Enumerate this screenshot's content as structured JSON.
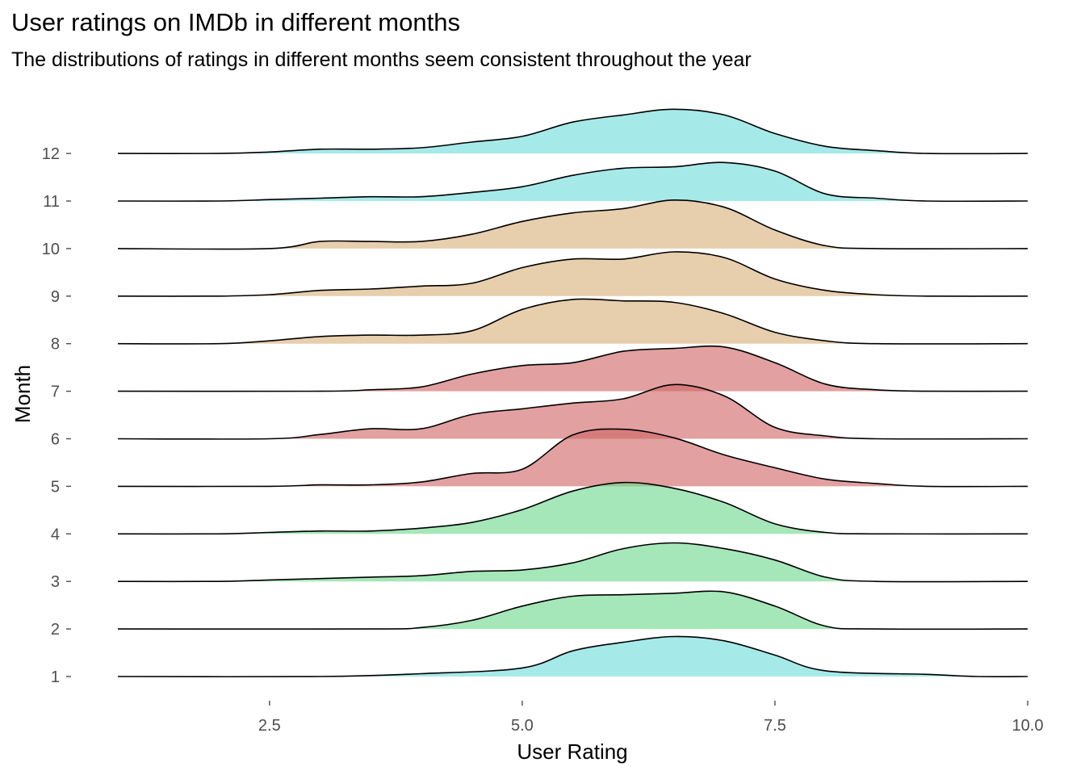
{
  "chart_data": {
    "type": "ridgeline",
    "title": "User ratings on IMDb in different months",
    "subtitle": "The distributions of ratings in different months seem consistent throughout the year",
    "xlabel": "User Rating",
    "ylabel": "Month",
    "xlim": [
      1.0,
      10.0
    ],
    "x_ticks": [
      "2.5",
      "5.0",
      "7.5",
      "10.0"
    ],
    "grid": false,
    "legend": "none",
    "scale": 1.2,
    "series": [
      {
        "name": "1",
        "fill": "#6fdbdb",
        "density": [
          [
            1.0,
            0
          ],
          [
            3,
            0.0
          ],
          [
            4,
            0.02
          ],
          [
            5,
            0.06
          ],
          [
            5.5,
            0.18
          ],
          [
            6,
            0.24
          ],
          [
            6.5,
            0.28
          ],
          [
            7,
            0.25
          ],
          [
            7.5,
            0.15
          ],
          [
            8,
            0.04
          ],
          [
            9,
            0.015
          ],
          [
            9.5,
            0.0
          ],
          [
            10,
            0
          ]
        ]
      },
      {
        "name": "2",
        "fill": "#6dd98d",
        "density": [
          [
            1.0,
            0
          ],
          [
            3.5,
            0.0
          ],
          [
            4,
            0.01
          ],
          [
            4.5,
            0.06
          ],
          [
            5,
            0.16
          ],
          [
            5.5,
            0.23
          ],
          [
            6,
            0.24
          ],
          [
            6.5,
            0.25
          ],
          [
            7,
            0.26
          ],
          [
            7.5,
            0.16
          ],
          [
            8,
            0.02
          ],
          [
            8.5,
            0.0
          ],
          [
            10,
            0
          ]
        ]
      },
      {
        "name": "3",
        "fill": "#6dd98d",
        "density": [
          [
            1.0,
            0
          ],
          [
            2,
            0.0
          ],
          [
            2.5,
            0.01
          ],
          [
            3,
            0.02
          ],
          [
            3.5,
            0.03
          ],
          [
            4,
            0.04
          ],
          [
            4.5,
            0.07
          ],
          [
            5,
            0.08
          ],
          [
            5.5,
            0.13
          ],
          [
            6,
            0.23
          ],
          [
            6.5,
            0.27
          ],
          [
            7,
            0.23
          ],
          [
            7.5,
            0.15
          ],
          [
            8,
            0.03
          ],
          [
            8.5,
            0.0
          ],
          [
            10,
            0
          ]
        ]
      },
      {
        "name": "4",
        "fill": "#6dd98d",
        "density": [
          [
            1.0,
            0
          ],
          [
            2,
            0.0
          ],
          [
            2.5,
            0.01
          ],
          [
            3,
            0.02
          ],
          [
            3.5,
            0.02
          ],
          [
            4,
            0.04
          ],
          [
            4.5,
            0.08
          ],
          [
            5,
            0.17
          ],
          [
            5.5,
            0.3
          ],
          [
            6,
            0.36
          ],
          [
            6.5,
            0.32
          ],
          [
            7,
            0.22
          ],
          [
            7.5,
            0.07
          ],
          [
            8,
            0.01
          ],
          [
            8.5,
            0.0
          ],
          [
            10,
            0
          ]
        ]
      },
      {
        "name": "5",
        "fill": "#d16666",
        "density": [
          [
            1.0,
            0
          ],
          [
            2.5,
            0.0
          ],
          [
            3,
            0.01
          ],
          [
            3.5,
            0.01
          ],
          [
            4,
            0.03
          ],
          [
            4.5,
            0.09
          ],
          [
            5,
            0.12
          ],
          [
            5.5,
            0.36
          ],
          [
            6,
            0.4
          ],
          [
            6.5,
            0.34
          ],
          [
            7,
            0.22
          ],
          [
            7.5,
            0.13
          ],
          [
            8,
            0.05
          ],
          [
            8.5,
            0.02
          ],
          [
            9,
            0.0
          ],
          [
            10,
            0
          ]
        ]
      },
      {
        "name": "6",
        "fill": "#d16666",
        "density": [
          [
            1.0,
            0
          ],
          [
            2.5,
            0.0
          ],
          [
            3,
            0.03
          ],
          [
            3.5,
            0.07
          ],
          [
            4,
            0.07
          ],
          [
            4.5,
            0.17
          ],
          [
            5,
            0.21
          ],
          [
            5.5,
            0.25
          ],
          [
            6,
            0.28
          ],
          [
            6.5,
            0.38
          ],
          [
            7,
            0.3
          ],
          [
            7.5,
            0.08
          ],
          [
            8,
            0.02
          ],
          [
            8.5,
            0.0
          ],
          [
            10,
            0
          ]
        ]
      },
      {
        "name": "7",
        "fill": "#d16666",
        "density": [
          [
            1.0,
            0
          ],
          [
            3,
            0.0
          ],
          [
            3.5,
            0.01
          ],
          [
            4,
            0.03
          ],
          [
            4.5,
            0.12
          ],
          [
            5,
            0.18
          ],
          [
            5.5,
            0.2
          ],
          [
            6,
            0.28
          ],
          [
            6.5,
            0.3
          ],
          [
            7,
            0.31
          ],
          [
            7.5,
            0.2
          ],
          [
            8,
            0.05
          ],
          [
            8.5,
            0.01
          ],
          [
            9,
            0.0
          ],
          [
            10,
            0
          ]
        ]
      },
      {
        "name": "8",
        "fill": "#d8b07a",
        "density": [
          [
            1.0,
            0
          ],
          [
            2,
            0.0
          ],
          [
            2.5,
            0.02
          ],
          [
            3,
            0.05
          ],
          [
            3.5,
            0.06
          ],
          [
            4,
            0.06
          ],
          [
            4.5,
            0.09
          ],
          [
            5,
            0.24
          ],
          [
            5.5,
            0.31
          ],
          [
            6,
            0.3
          ],
          [
            6.5,
            0.29
          ],
          [
            7,
            0.21
          ],
          [
            7.5,
            0.08
          ],
          [
            8,
            0.02
          ],
          [
            8.5,
            0.0
          ],
          [
            10,
            0
          ]
        ]
      },
      {
        "name": "9",
        "fill": "#d8b07a",
        "density": [
          [
            1.0,
            0
          ],
          [
            2,
            0.0
          ],
          [
            2.5,
            0.01
          ],
          [
            3,
            0.04
          ],
          [
            3.5,
            0.05
          ],
          [
            4,
            0.07
          ],
          [
            4.5,
            0.09
          ],
          [
            5,
            0.2
          ],
          [
            5.5,
            0.26
          ],
          [
            6,
            0.26
          ],
          [
            6.5,
            0.31
          ],
          [
            7,
            0.27
          ],
          [
            7.5,
            0.12
          ],
          [
            8,
            0.04
          ],
          [
            8.5,
            0.01
          ],
          [
            9,
            0.0
          ],
          [
            10,
            0
          ]
        ]
      },
      {
        "name": "10",
        "fill": "#d8b07a",
        "density": [
          [
            1.0,
            0
          ],
          [
            2.5,
            0.0
          ],
          [
            3,
            0.05
          ],
          [
            3.5,
            0.05
          ],
          [
            4,
            0.05
          ],
          [
            4.5,
            0.1
          ],
          [
            5,
            0.19
          ],
          [
            5.5,
            0.25
          ],
          [
            6,
            0.28
          ],
          [
            6.5,
            0.34
          ],
          [
            7,
            0.29
          ],
          [
            7.5,
            0.13
          ],
          [
            8,
            0.02
          ],
          [
            8.5,
            0.0
          ],
          [
            10,
            0
          ]
        ]
      },
      {
        "name": "11",
        "fill": "#6fdbdb",
        "density": [
          [
            1.0,
            0
          ],
          [
            2,
            0.0
          ],
          [
            2.5,
            0.01
          ],
          [
            3,
            0.02
          ],
          [
            3.5,
            0.03
          ],
          [
            4,
            0.03
          ],
          [
            4.5,
            0.06
          ],
          [
            5,
            0.1
          ],
          [
            5.5,
            0.18
          ],
          [
            6,
            0.23
          ],
          [
            6.5,
            0.24
          ],
          [
            7,
            0.27
          ],
          [
            7.5,
            0.21
          ],
          [
            8,
            0.05
          ],
          [
            8.5,
            0.02
          ],
          [
            9,
            0.0
          ],
          [
            10,
            0
          ]
        ]
      },
      {
        "name": "12",
        "fill": "#6fdbdb",
        "density": [
          [
            1.0,
            0
          ],
          [
            2,
            0.0
          ],
          [
            2.5,
            0.01
          ],
          [
            3,
            0.03
          ],
          [
            3.5,
            0.03
          ],
          [
            4,
            0.04
          ],
          [
            4.5,
            0.08
          ],
          [
            5,
            0.12
          ],
          [
            5.5,
            0.22
          ],
          [
            6,
            0.27
          ],
          [
            6.5,
            0.31
          ],
          [
            7,
            0.27
          ],
          [
            7.5,
            0.14
          ],
          [
            8,
            0.05
          ],
          [
            8.5,
            0.02
          ],
          [
            9,
            0.0
          ],
          [
            10,
            0
          ]
        ]
      }
    ]
  }
}
